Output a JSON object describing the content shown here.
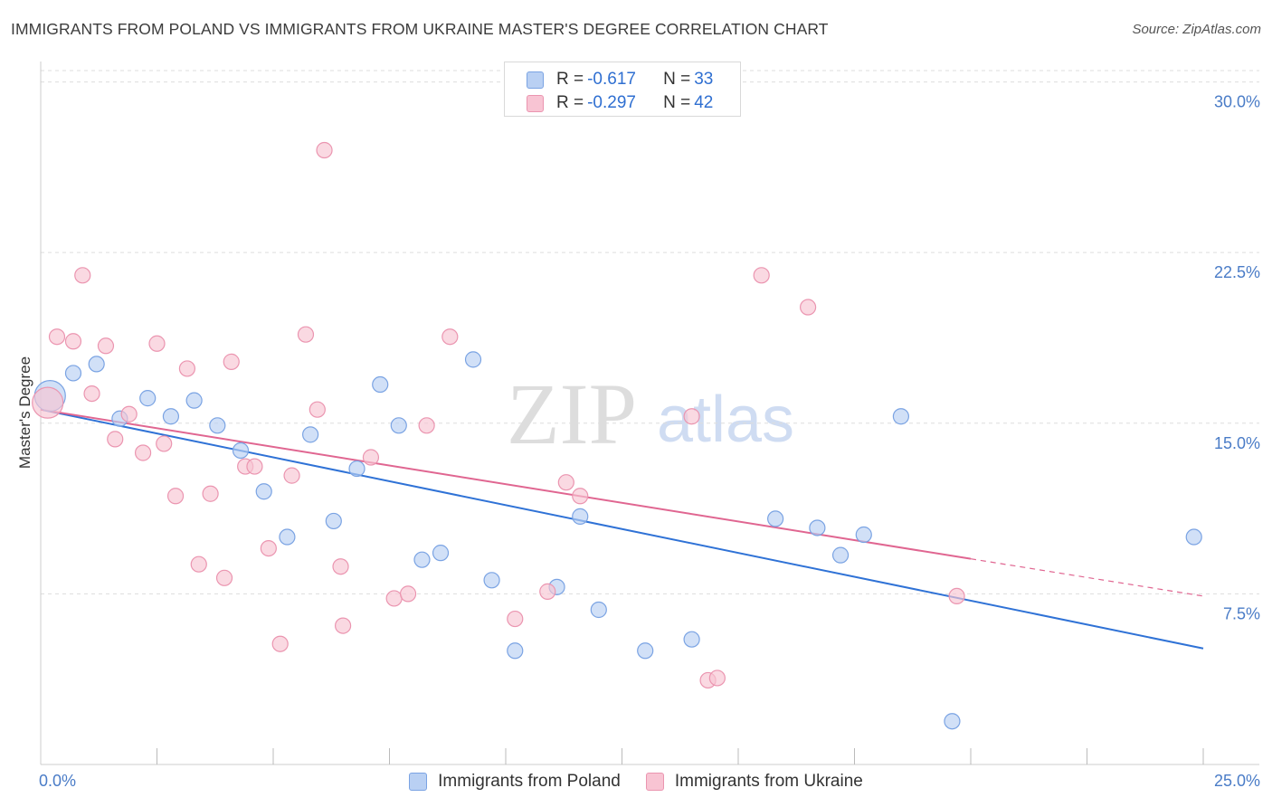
{
  "title": "IMMIGRANTS FROM POLAND VS IMMIGRANTS FROM UKRAINE MASTER'S DEGREE CORRELATION CHART",
  "source": "Source: ZipAtlas.com",
  "watermark": {
    "part1": "ZIP",
    "part2": "atlas"
  },
  "colors": {
    "poland_fill": "#b9d0f3",
    "poland_stroke": "#7aa3e3",
    "poland_line": "#2f72d6",
    "ukraine_fill": "#f8c4d3",
    "ukraine_stroke": "#eb95b0",
    "ukraine_line": "#e06691",
    "tick_label": "#4a7cc7",
    "grid": "#dddddd",
    "axis": "#cccccc"
  },
  "legend": {
    "r_label": "R =",
    "n_label": "N =",
    "poland": {
      "r": "-0.617",
      "n": "33"
    },
    "ukraine": {
      "r": "-0.297",
      "n": "42"
    }
  },
  "chart_data": {
    "type": "scatter",
    "title": "IMMIGRANTS FROM POLAND VS IMMIGRANTS FROM UKRAINE MASTER'S DEGREE CORRELATION CHART",
    "xlabel": "",
    "ylabel": "Master's Degree",
    "xlim": [
      0,
      25
    ],
    "ylim": [
      0,
      30.5
    ],
    "x_tick_labels": [
      {
        "value": 0,
        "label": "0.0%"
      },
      {
        "value": 25,
        "label": "25.0%"
      }
    ],
    "x_minor_ticks": [
      2.5,
      5,
      7.5,
      10,
      12.5,
      15,
      17.5,
      20,
      22.5,
      25
    ],
    "y_ticks": [
      {
        "value": 7.5,
        "label": "7.5%"
      },
      {
        "value": 15,
        "label": "15.0%"
      },
      {
        "value": 22.5,
        "label": "22.5%"
      },
      {
        "value": 30,
        "label": "30.0%"
      }
    ],
    "grid": true,
    "legend_position": "top-center",
    "series": [
      {
        "name": "Immigrants from Poland",
        "r": -0.617,
        "n": 33,
        "trend": {
          "x": [
            0,
            25
          ],
          "y": [
            15.6,
            5.1
          ],
          "dashed_from": null
        },
        "points": [
          {
            "x": 0.2,
            "y": 16.2,
            "big": true
          },
          {
            "x": 0.7,
            "y": 17.2
          },
          {
            "x": 1.2,
            "y": 17.6
          },
          {
            "x": 1.7,
            "y": 15.2
          },
          {
            "x": 2.3,
            "y": 16.1
          },
          {
            "x": 2.8,
            "y": 15.3
          },
          {
            "x": 3.3,
            "y": 16.0
          },
          {
            "x": 3.8,
            "y": 14.9
          },
          {
            "x": 4.3,
            "y": 13.8
          },
          {
            "x": 4.8,
            "y": 12.0
          },
          {
            "x": 5.3,
            "y": 10.0
          },
          {
            "x": 5.8,
            "y": 14.5
          },
          {
            "x": 6.3,
            "y": 10.7
          },
          {
            "x": 6.8,
            "y": 13.0
          },
          {
            "x": 7.3,
            "y": 16.7
          },
          {
            "x": 7.7,
            "y": 14.9
          },
          {
            "x": 8.2,
            "y": 9.0
          },
          {
            "x": 8.6,
            "y": 9.3
          },
          {
            "x": 9.3,
            "y": 17.8
          },
          {
            "x": 9.7,
            "y": 8.1
          },
          {
            "x": 10.2,
            "y": 5.0
          },
          {
            "x": 11.1,
            "y": 7.8
          },
          {
            "x": 11.6,
            "y": 10.9
          },
          {
            "x": 12.0,
            "y": 6.8
          },
          {
            "x": 13.0,
            "y": 5.0
          },
          {
            "x": 14.0,
            "y": 5.5
          },
          {
            "x": 15.8,
            "y": 10.8
          },
          {
            "x": 16.7,
            "y": 10.4
          },
          {
            "x": 17.2,
            "y": 9.2
          },
          {
            "x": 17.7,
            "y": 10.1
          },
          {
            "x": 18.5,
            "y": 15.3
          },
          {
            "x": 19.6,
            "y": 1.9
          },
          {
            "x": 24.8,
            "y": 10.0
          }
        ]
      },
      {
        "name": "Immigrants from Ukraine",
        "r": -0.297,
        "n": 42,
        "trend": {
          "x": [
            0,
            25
          ],
          "y": [
            15.6,
            7.4
          ],
          "dashed_from": 20
        },
        "points": [
          {
            "x": 0.15,
            "y": 15.9,
            "big": true
          },
          {
            "x": 0.35,
            "y": 18.8
          },
          {
            "x": 0.7,
            "y": 18.6
          },
          {
            "x": 0.9,
            "y": 21.5
          },
          {
            "x": 1.1,
            "y": 16.3
          },
          {
            "x": 1.4,
            "y": 18.4
          },
          {
            "x": 1.6,
            "y": 14.3
          },
          {
            "x": 1.9,
            "y": 15.4
          },
          {
            "x": 2.2,
            "y": 13.7
          },
          {
            "x": 2.5,
            "y": 18.5
          },
          {
            "x": 2.65,
            "y": 14.1
          },
          {
            "x": 2.9,
            "y": 11.8
          },
          {
            "x": 3.15,
            "y": 17.4
          },
          {
            "x": 3.4,
            "y": 8.8
          },
          {
            "x": 3.65,
            "y": 11.9
          },
          {
            "x": 3.95,
            "y": 8.2
          },
          {
            "x": 4.1,
            "y": 17.7
          },
          {
            "x": 4.4,
            "y": 13.1
          },
          {
            "x": 4.6,
            "y": 13.1
          },
          {
            "x": 4.9,
            "y": 9.5
          },
          {
            "x": 5.15,
            "y": 5.3
          },
          {
            "x": 5.4,
            "y": 12.7
          },
          {
            "x": 5.7,
            "y": 18.9
          },
          {
            "x": 5.95,
            "y": 15.6
          },
          {
            "x": 6.1,
            "y": 27.0
          },
          {
            "x": 6.45,
            "y": 8.7
          },
          {
            "x": 6.5,
            "y": 6.1
          },
          {
            "x": 7.1,
            "y": 13.5
          },
          {
            "x": 7.6,
            "y": 7.3
          },
          {
            "x": 7.9,
            "y": 7.5
          },
          {
            "x": 8.3,
            "y": 14.9
          },
          {
            "x": 8.8,
            "y": 18.8
          },
          {
            "x": 10.2,
            "y": 6.4
          },
          {
            "x": 10.9,
            "y": 7.6
          },
          {
            "x": 11.3,
            "y": 12.4
          },
          {
            "x": 11.6,
            "y": 11.8
          },
          {
            "x": 14.0,
            "y": 15.3
          },
          {
            "x": 14.35,
            "y": 3.7
          },
          {
            "x": 14.55,
            "y": 3.8
          },
          {
            "x": 15.5,
            "y": 21.5
          },
          {
            "x": 16.5,
            "y": 20.1
          },
          {
            "x": 19.7,
            "y": 7.4
          }
        ]
      }
    ]
  }
}
